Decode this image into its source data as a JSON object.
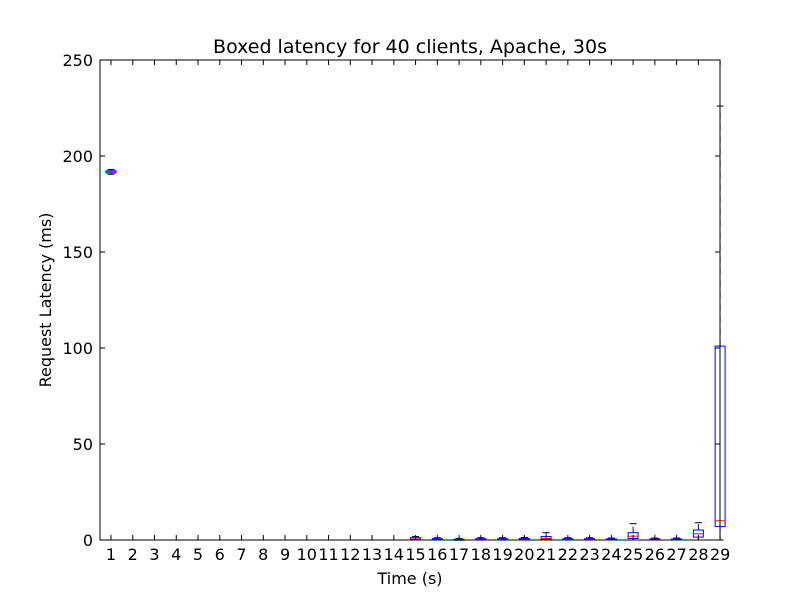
{
  "chart_data": {
    "type": "box",
    "title": "Boxed latency for 40 clients, Apache, 30s",
    "xlabel": "Time (s)",
    "ylabel": "Request Latency (ms)",
    "ylim": [
      0,
      250
    ],
    "yticks": [
      0,
      50,
      100,
      150,
      200,
      250
    ],
    "categories": [
      "1",
      "2",
      "3",
      "4",
      "5",
      "6",
      "7",
      "8",
      "9",
      "10",
      "11",
      "12",
      "13",
      "14",
      "15",
      "16",
      "17",
      "18",
      "19",
      "20",
      "21",
      "22",
      "23",
      "24",
      "25",
      "26",
      "27",
      "28",
      "29"
    ],
    "grid": false,
    "box_color": "#0000ff",
    "median_color": "#ff0000",
    "boxes": [
      {
        "x": "1",
        "whislo": 190.5,
        "q1": 191.2,
        "med": 191.8,
        "q3": 192.3,
        "whishi": 193.0
      },
      {
        "x": "15",
        "whislo": 0.0,
        "q1": 0.2,
        "med": 0.5,
        "q3": 1.2,
        "whishi": 1.8
      },
      {
        "x": "16",
        "whislo": 0.0,
        "q1": 0.1,
        "med": 0.3,
        "q3": 0.7,
        "whishi": 1.2
      },
      {
        "x": "17",
        "whislo": 0.0,
        "q1": 0.1,
        "med": 0.2,
        "q3": 0.4,
        "whishi": 0.8
      },
      {
        "x": "18",
        "whislo": 0.0,
        "q1": 0.1,
        "med": 0.3,
        "q3": 0.7,
        "whishi": 1.2
      },
      {
        "x": "19",
        "whislo": 0.0,
        "q1": 0.1,
        "med": 0.3,
        "q3": 0.7,
        "whishi": 1.2
      },
      {
        "x": "20",
        "whislo": 0.0,
        "q1": 0.1,
        "med": 0.3,
        "q3": 0.8,
        "whishi": 1.3
      },
      {
        "x": "21",
        "whislo": 0.0,
        "q1": 0.3,
        "med": 0.8,
        "q3": 1.8,
        "whishi": 3.8
      },
      {
        "x": "22",
        "whislo": 0.0,
        "q1": 0.1,
        "med": 0.3,
        "q3": 0.7,
        "whishi": 1.2
      },
      {
        "x": "23",
        "whislo": 0.0,
        "q1": 0.1,
        "med": 0.3,
        "q3": 0.7,
        "whishi": 1.2
      },
      {
        "x": "24",
        "whislo": 0.0,
        "q1": 0.1,
        "med": 0.3,
        "q3": 0.6,
        "whishi": 1.0
      },
      {
        "x": "25",
        "whislo": 0.0,
        "q1": 0.8,
        "med": 2.0,
        "q3": 3.8,
        "whishi": 8.5
      },
      {
        "x": "26",
        "whislo": 0.0,
        "q1": 0.1,
        "med": 0.3,
        "q3": 0.6,
        "whishi": 1.0
      },
      {
        "x": "27",
        "whislo": 0.0,
        "q1": 0.1,
        "med": 0.3,
        "q3": 0.6,
        "whishi": 1.0
      },
      {
        "x": "28",
        "whislo": 0.0,
        "q1": 1.5,
        "med": 3.2,
        "q3": 5.2,
        "whishi": 9.0
      },
      {
        "x": "29",
        "whislo": 0.0,
        "q1": 7.0,
        "med": 10.0,
        "q3": 101.0,
        "whishi": 226.0
      }
    ]
  }
}
